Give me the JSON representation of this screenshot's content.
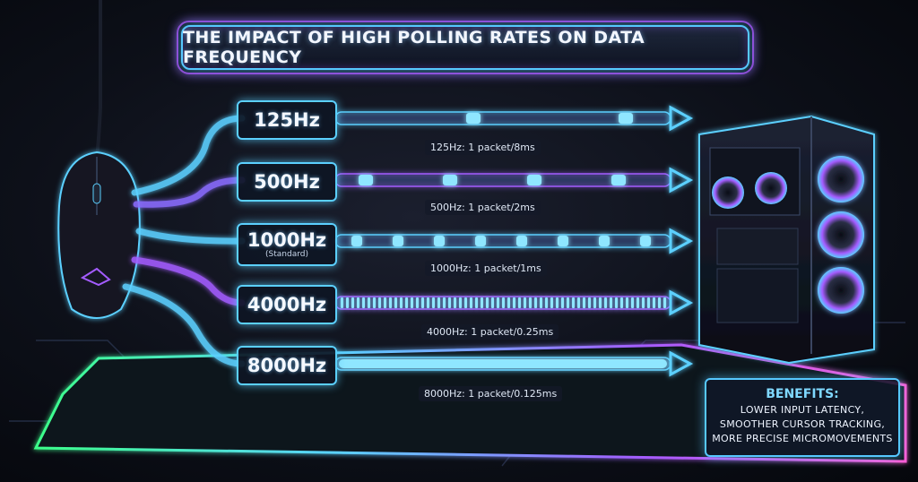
{
  "title": "THE IMPACT OF HIGH POLLING RATES ON DATA FREQUENCY",
  "rates": [
    {
      "label": "125Hz",
      "note": "",
      "caption": "125Hz: 1 packet/8ms",
      "packets_per_ms": 0.125
    },
    {
      "label": "500Hz",
      "note": "",
      "caption": "500Hz: 1 packet/2ms",
      "packets_per_ms": 0.5
    },
    {
      "label": "1000Hz",
      "note": "(Standard)",
      "caption": "1000Hz: 1 packet/1ms",
      "packets_per_ms": 1
    },
    {
      "label": "4000Hz",
      "note": "",
      "caption": "4000Hz: 1 packet/0.25ms",
      "packets_per_ms": 4
    },
    {
      "label": "8000Hz",
      "note": "",
      "caption": "8000Hz: 1 packet/0.125ms",
      "packets_per_ms": 8
    }
  ],
  "benefits": {
    "title": "BENEFITS:",
    "lines": [
      "LOWER INPUT LATENCY,",
      "SMOOTHER CURSOR TRACKING,",
      "MORE PRECISE MICROMOVEMENTS"
    ]
  },
  "colors": {
    "cyan": "#5bd0ff",
    "purple": "#a45cff",
    "packet": "#8fe6ff"
  },
  "icons": {
    "mouse": "gaming-mouse-icon",
    "pc": "pc-case-icon"
  }
}
